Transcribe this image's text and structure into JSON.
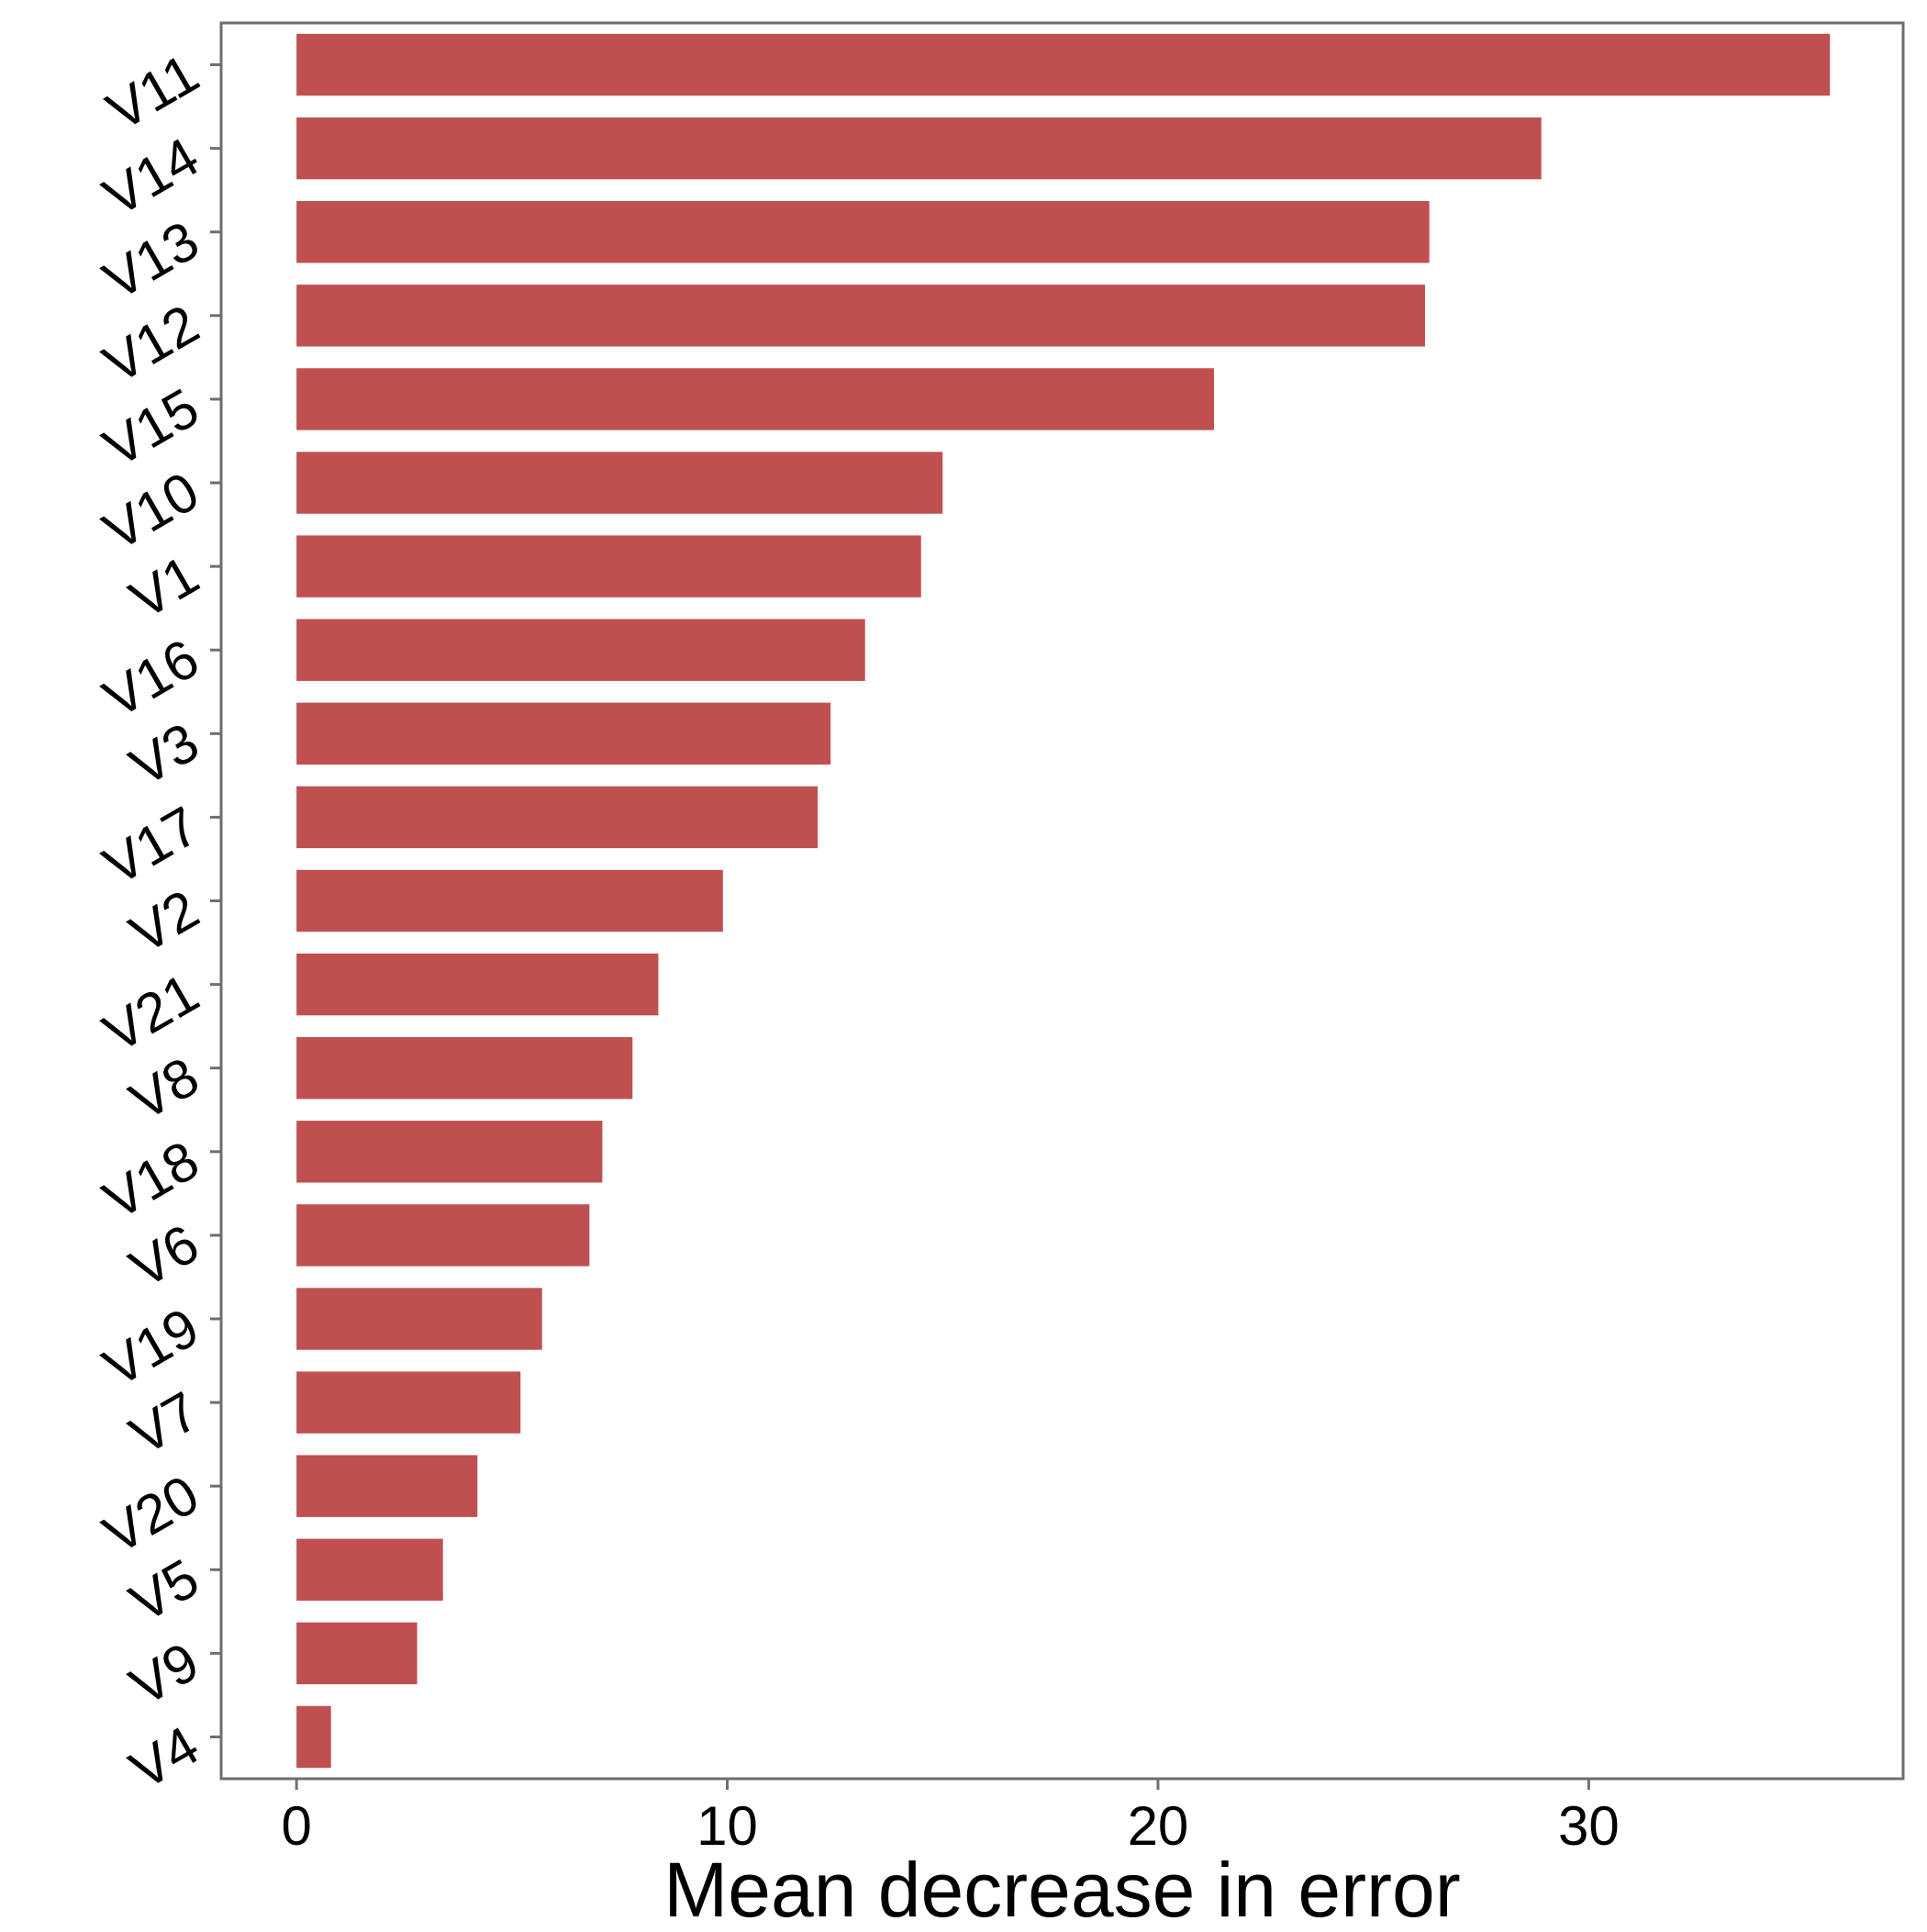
{
  "chart_data": {
    "type": "bar",
    "orientation": "horizontal",
    "categories": [
      "V11",
      "V14",
      "V13",
      "V12",
      "V15",
      "V10",
      "V1",
      "V16",
      "V3",
      "V17",
      "V2",
      "V21",
      "V8",
      "V18",
      "V6",
      "V19",
      "V7",
      "V20",
      "V5",
      "V9",
      "V4"
    ],
    "values": [
      35.6,
      28.9,
      26.3,
      26.2,
      21.3,
      15.0,
      14.5,
      13.2,
      12.4,
      12.1,
      9.9,
      8.4,
      7.8,
      7.1,
      6.8,
      5.7,
      5.2,
      4.2,
      3.4,
      2.8,
      0.8
    ],
    "xlabel": "Mean decrease in error",
    "ylabel": "",
    "title": "",
    "xlim": [
      -1.75,
      37.3
    ],
    "xticks": [
      0,
      10,
      20,
      30
    ],
    "xtick_labels": [
      "0",
      "10",
      "20",
      "30"
    ],
    "grid": false,
    "legend": "none",
    "bar_color": "#c05050",
    "frame_color": "#6e6e6e"
  }
}
